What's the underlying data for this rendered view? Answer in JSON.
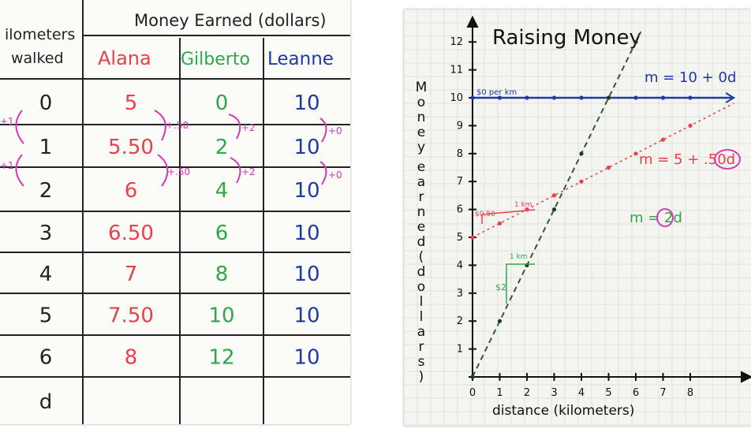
{
  "left_poster": {
    "header_col1": [
      "ilometers",
      "walked"
    ],
    "header_group": "Money Earned (dollars)",
    "columns": [
      {
        "name": "Alana",
        "color": "#e8414a"
      },
      {
        "name": "Gilberto",
        "color": "#2ea84a"
      },
      {
        "name": "Leanne",
        "color": "#1f3aa8"
      }
    ],
    "rows": [
      {
        "km": "0",
        "alana": "5",
        "gilberto": "0",
        "leanne": "10"
      },
      {
        "km": "1",
        "alana": "5.50",
        "gilberto": "2",
        "leanne": "10"
      },
      {
        "km": "2",
        "alana": "6",
        "gilberto": "4",
        "leanne": "10"
      },
      {
        "km": "3",
        "alana": "6.50",
        "gilberto": "6",
        "leanne": "10"
      },
      {
        "km": "4",
        "alana": "7",
        "gilberto": "8",
        "leanne": "10"
      },
      {
        "km": "5",
        "alana": "7.50",
        "gilberto": "10",
        "leanne": "10"
      },
      {
        "km": "6",
        "alana": "8",
        "gilberto": "12",
        "leanne": "10"
      },
      {
        "km": "d",
        "alana": "",
        "gilberto": "",
        "leanne": ""
      }
    ],
    "annotations": {
      "km_step_1": "+1",
      "km_step_2": "+1",
      "alana_step_1": "+.50",
      "alana_step_2": "+.50",
      "gilberto_step_1": "+2",
      "gilberto_step_2": "+2",
      "leanne_step_1": "+0",
      "leanne_step_2": "+0",
      "annotation_color": "#d63ab8"
    }
  },
  "right_poster": {
    "title": "Raising Money",
    "y_axis_label_letters": [
      "M",
      "o",
      "n",
      "e",
      "y",
      "e",
      "a",
      "r",
      "n",
      "e",
      "d",
      "(",
      "d",
      "o",
      "l",
      "l",
      "a",
      "r",
      "s",
      ")"
    ],
    "x_axis_label": "distance (kilometers)",
    "x_ticks": [
      "0",
      "1",
      "2",
      "3",
      "4",
      "5",
      "6",
      "7",
      "8"
    ],
    "y_ticks": [
      "0",
      "1",
      "2",
      "3",
      "4",
      "5",
      "6",
      "7",
      "8",
      "9",
      "10",
      "11",
      "12"
    ],
    "equations": {
      "leanne": "m = 10 + 0d",
      "alana": "m = 5 + .50d",
      "gilberto": "m = 2d"
    },
    "notes": {
      "leanne_rate": "$0 per km",
      "alana_rate_y": "$0.50",
      "alana_rate_x": "1 km",
      "gilberto_rate_y": "$2",
      "gilberto_rate_x": "1 km"
    },
    "colors": {
      "leanne": "#1f3aa8",
      "alana": "#e8414a",
      "gilberto": "#2ea84a",
      "gilberto_line": "#2f5a35",
      "axes": "#111111"
    }
  },
  "chart_data": {
    "type": "line",
    "title": "Raising Money",
    "xlabel": "distance (kilometers)",
    "ylabel": "Money earned (dollars)",
    "xlim": [
      0,
      8
    ],
    "ylim": [
      0,
      12
    ],
    "series": [
      {
        "x": [
          0,
          1,
          2,
          3,
          4,
          5,
          6,
          7,
          8
        ],
        "values": [
          10,
          10,
          10,
          10,
          10,
          10,
          10,
          10,
          10
        ]
      },
      {
        "x": [
          0,
          1,
          2,
          3,
          4,
          5,
          6,
          7,
          8
        ],
        "values": [
          5,
          5.5,
          6,
          6.5,
          7,
          7.5,
          8,
          8.5,
          9
        ]
      },
      {
        "x": [
          0,
          1,
          2,
          3,
          4,
          5,
          6
        ],
        "values": [
          0,
          2,
          4,
          6,
          8,
          10,
          12
        ]
      }
    ],
    "annotations": [
      "m = 10 + 0d",
      "m = 5 + .50d",
      "m = 2d"
    ]
  }
}
